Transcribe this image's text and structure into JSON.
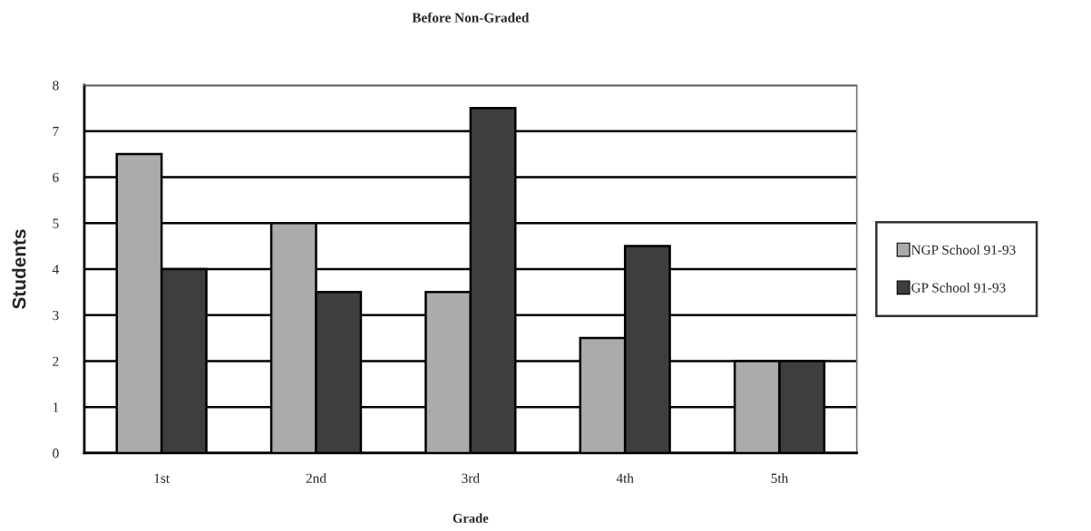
{
  "chart_data": {
    "type": "bar",
    "title": "Before Non-Graded",
    "xlabel": "Grade",
    "ylabel": "Students",
    "categories": [
      "1st",
      "2nd",
      "3rd",
      "4th",
      "5th"
    ],
    "series": [
      {
        "name": "NGP School 91-93",
        "color": "#ababab",
        "values": [
          6.5,
          5,
          3.5,
          2.5,
          2
        ]
      },
      {
        "name": "GP School 91-93",
        "color": "#3e3e3e",
        "values": [
          4,
          3.5,
          7.5,
          4.5,
          2
        ]
      }
    ],
    "ylim": [
      0,
      8
    ],
    "yticks": [
      0,
      1,
      2,
      3,
      4,
      5,
      6,
      7,
      8
    ],
    "grid": "y",
    "legend": "right"
  }
}
